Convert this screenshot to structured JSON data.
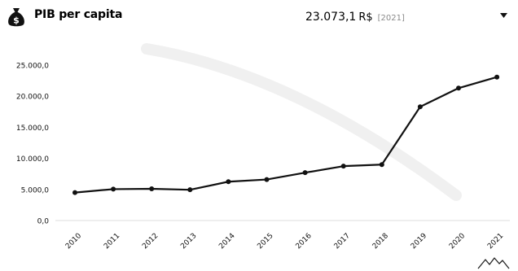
{
  "header": {
    "icon": "money-bag-icon",
    "title": "PIB per capita",
    "value": "23.073,1",
    "unit": "R$",
    "year": "[2021]",
    "dropdown_icon": "chevron-down-icon"
  },
  "footer": {
    "logo_icon": "mountain-logo-icon"
  },
  "chart_data": {
    "type": "line",
    "title": "",
    "xlabel": "",
    "ylabel": "",
    "categories": [
      "2010",
      "2011",
      "2012",
      "2013",
      "2014",
      "2015",
      "2016",
      "2017",
      "2018",
      "2019",
      "2020",
      "2021"
    ],
    "series": [
      {
        "values": [
          4500,
          5050,
          5100,
          4950,
          6250,
          6600,
          7700,
          8750,
          9000,
          18300,
          21300,
          23073.1
        ]
      }
    ],
    "y_ticks": [
      0,
      5000,
      10000,
      15000,
      20000,
      25000
    ],
    "y_tick_labels": [
      "0,0",
      "5.000,0",
      "10.000,0",
      "15.000,0",
      "20.000,0",
      "25.000,0"
    ],
    "ylim": [
      0,
      25000
    ],
    "grid": false,
    "legend": "none",
    "colors": {
      "line": "#111111",
      "marker": "#111111"
    }
  }
}
